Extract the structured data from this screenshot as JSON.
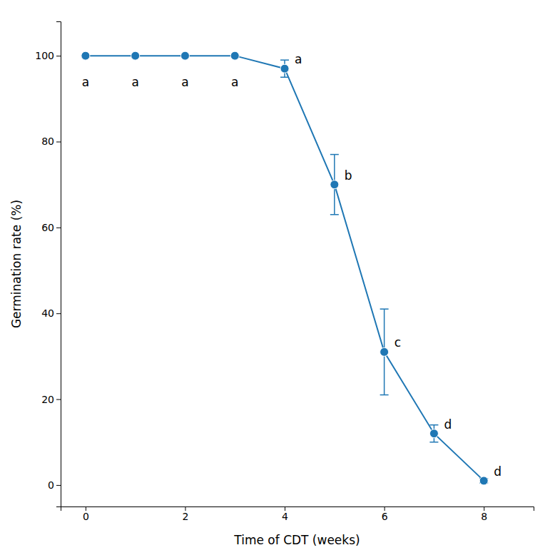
{
  "chart_data": {
    "type": "line",
    "xlabel": "Time of CDT (weeks)",
    "ylabel": "Germination rate (%)",
    "x": [
      0,
      1,
      2,
      3,
      4,
      5,
      6,
      7,
      8
    ],
    "values": [
      100,
      100,
      100,
      100,
      97,
      70,
      31,
      12,
      1
    ],
    "error": [
      0,
      0,
      0,
      0,
      2,
      7,
      10,
      2,
      0.5
    ],
    "annotations": [
      "a",
      "a",
      "a",
      "a",
      "a",
      "b",
      "c",
      "d",
      "d"
    ],
    "xlim": [
      -0.5,
      9.0
    ],
    "ylim": [
      -5,
      108
    ],
    "xticks": [
      0,
      2,
      4,
      6,
      8
    ],
    "yticks": [
      0,
      20,
      40,
      60,
      80,
      100
    ],
    "grid": false
  }
}
